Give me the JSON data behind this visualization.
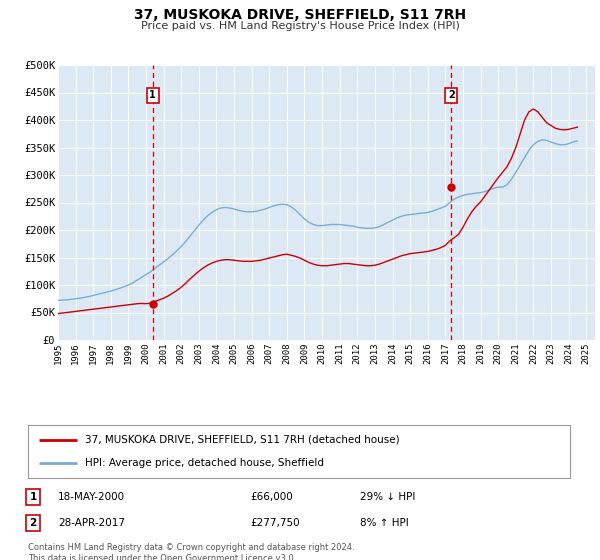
{
  "title": "37, MUSKOKA DRIVE, SHEFFIELD, S11 7RH",
  "subtitle": "Price paid vs. HM Land Registry's House Price Index (HPI)",
  "background_color": "#ffffff",
  "plot_bg_color": "#dce9f5",
  "grid_color": "#cccccc",
  "red_line_color": "#cc0000",
  "blue_line_color": "#7aadcf",
  "ylim": [
    0,
    500000
  ],
  "yticks": [
    0,
    50000,
    100000,
    150000,
    200000,
    250000,
    300000,
    350000,
    400000,
    450000,
    500000
  ],
  "ytick_labels": [
    "£0",
    "£50K",
    "£100K",
    "£150K",
    "£200K",
    "£250K",
    "£300K",
    "£350K",
    "£400K",
    "£450K",
    "£500K"
  ],
  "xlim_start": 1995.0,
  "xlim_end": 2025.5,
  "marker1_x": 2000.38,
  "marker1_y": 66000,
  "marker2_x": 2017.33,
  "marker2_y": 277750,
  "legend_line1": "37, MUSKOKA DRIVE, SHEFFIELD, S11 7RH (detached house)",
  "legend_line2": "HPI: Average price, detached house, Sheffield",
  "table_row1": [
    "1",
    "18-MAY-2000",
    "£66,000",
    "29% ↓ HPI"
  ],
  "table_row2": [
    "2",
    "28-APR-2017",
    "£277,750",
    "8% ↑ HPI"
  ],
  "footer1": "Contains HM Land Registry data © Crown copyright and database right 2024.",
  "footer2": "This data is licensed under the Open Government Licence v3.0.",
  "hpi_data_x": [
    1995.0,
    1995.25,
    1995.5,
    1995.75,
    1996.0,
    1996.25,
    1996.5,
    1996.75,
    1997.0,
    1997.25,
    1997.5,
    1997.75,
    1998.0,
    1998.25,
    1998.5,
    1998.75,
    1999.0,
    1999.25,
    1999.5,
    1999.75,
    2000.0,
    2000.25,
    2000.5,
    2000.75,
    2001.0,
    2001.25,
    2001.5,
    2001.75,
    2002.0,
    2002.25,
    2002.5,
    2002.75,
    2003.0,
    2003.25,
    2003.5,
    2003.75,
    2004.0,
    2004.25,
    2004.5,
    2004.75,
    2005.0,
    2005.25,
    2005.5,
    2005.75,
    2006.0,
    2006.25,
    2006.5,
    2006.75,
    2007.0,
    2007.25,
    2007.5,
    2007.75,
    2008.0,
    2008.25,
    2008.5,
    2008.75,
    2009.0,
    2009.25,
    2009.5,
    2009.75,
    2010.0,
    2010.25,
    2010.5,
    2010.75,
    2011.0,
    2011.25,
    2011.5,
    2011.75,
    2012.0,
    2012.25,
    2012.5,
    2012.75,
    2013.0,
    2013.25,
    2013.5,
    2013.75,
    2014.0,
    2014.25,
    2014.5,
    2014.75,
    2015.0,
    2015.25,
    2015.5,
    2015.75,
    2016.0,
    2016.25,
    2016.5,
    2016.75,
    2017.0,
    2017.25,
    2017.5,
    2017.75,
    2018.0,
    2018.25,
    2018.5,
    2018.75,
    2019.0,
    2019.25,
    2019.5,
    2019.75,
    2020.0,
    2020.25,
    2020.5,
    2020.75,
    2021.0,
    2021.25,
    2021.5,
    2021.75,
    2022.0,
    2022.25,
    2022.5,
    2022.75,
    2023.0,
    2023.25,
    2023.5,
    2023.75,
    2024.0,
    2024.25,
    2024.5
  ],
  "hpi_data_y": [
    72000,
    72500,
    73000,
    74000,
    75000,
    76000,
    77500,
    79000,
    81000,
    83000,
    85000,
    87000,
    89000,
    91500,
    94000,
    97000,
    100000,
    104000,
    109000,
    114000,
    119000,
    124000,
    130000,
    136000,
    142000,
    148000,
    155000,
    162000,
    170000,
    179000,
    189000,
    199000,
    209000,
    218000,
    226000,
    232000,
    237000,
    240000,
    241000,
    240000,
    238000,
    236000,
    234000,
    233000,
    233000,
    234000,
    236000,
    238000,
    241000,
    244000,
    246000,
    247000,
    246000,
    242000,
    236000,
    228000,
    220000,
    214000,
    210000,
    208000,
    208000,
    209000,
    210000,
    210000,
    210000,
    209000,
    208000,
    207000,
    205000,
    204000,
    203000,
    203000,
    204000,
    206000,
    210000,
    214000,
    218000,
    222000,
    225000,
    227000,
    228000,
    229000,
    230000,
    231000,
    232000,
    234000,
    237000,
    240000,
    243000,
    250000,
    256000,
    260000,
    263000,
    265000,
    266000,
    267000,
    268000,
    270000,
    273000,
    276000,
    278000,
    278000,
    282000,
    292000,
    305000,
    318000,
    332000,
    345000,
    355000,
    361000,
    364000,
    363000,
    360000,
    357000,
    355000,
    355000,
    357000,
    360000,
    362000
  ],
  "price_data_x": [
    1995.0,
    1995.25,
    1995.5,
    1995.75,
    1996.0,
    1996.25,
    1996.5,
    1996.75,
    1997.0,
    1997.25,
    1997.5,
    1997.75,
    1998.0,
    1998.25,
    1998.5,
    1998.75,
    1999.0,
    1999.25,
    1999.5,
    1999.75,
    2000.0,
    2000.25,
    2000.5,
    2000.75,
    2001.0,
    2001.25,
    2001.5,
    2001.75,
    2002.0,
    2002.25,
    2002.5,
    2002.75,
    2003.0,
    2003.25,
    2003.5,
    2003.75,
    2004.0,
    2004.25,
    2004.5,
    2004.75,
    2005.0,
    2005.25,
    2005.5,
    2005.75,
    2006.0,
    2006.25,
    2006.5,
    2006.75,
    2007.0,
    2007.25,
    2007.5,
    2007.75,
    2008.0,
    2008.25,
    2008.5,
    2008.75,
    2009.0,
    2009.25,
    2009.5,
    2009.75,
    2010.0,
    2010.25,
    2010.5,
    2010.75,
    2011.0,
    2011.25,
    2011.5,
    2011.75,
    2012.0,
    2012.25,
    2012.5,
    2012.75,
    2013.0,
    2013.25,
    2013.5,
    2013.75,
    2014.0,
    2014.25,
    2014.5,
    2014.75,
    2015.0,
    2015.25,
    2015.5,
    2015.75,
    2016.0,
    2016.25,
    2016.5,
    2016.75,
    2017.0,
    2017.25,
    2017.5,
    2017.75,
    2018.0,
    2018.25,
    2018.5,
    2018.75,
    2019.0,
    2019.25,
    2019.5,
    2019.75,
    2020.0,
    2020.25,
    2020.5,
    2020.75,
    2021.0,
    2021.25,
    2021.5,
    2021.75,
    2022.0,
    2022.25,
    2022.5,
    2022.75,
    2023.0,
    2023.25,
    2023.5,
    2023.75,
    2024.0,
    2024.25,
    2024.5
  ],
  "price_data_y": [
    48000,
    49000,
    50000,
    51000,
    52000,
    53000,
    54000,
    55000,
    56000,
    57000,
    58000,
    59000,
    60000,
    61000,
    62000,
    63000,
    64000,
    65000,
    66000,
    66500,
    66000,
    67000,
    70000,
    73000,
    76000,
    80000,
    85000,
    90000,
    96000,
    103000,
    111000,
    118000,
    125000,
    131000,
    136000,
    140000,
    143000,
    145000,
    146000,
    146000,
    145000,
    144000,
    143000,
    143000,
    143000,
    144000,
    145000,
    147000,
    149000,
    151000,
    153000,
    155000,
    156000,
    154000,
    152000,
    149000,
    145000,
    141000,
    138000,
    136000,
    135000,
    135000,
    136000,
    137000,
    138000,
    139000,
    139000,
    138000,
    137000,
    136000,
    135000,
    135000,
    136000,
    138000,
    141000,
    144000,
    147000,
    150000,
    153000,
    155000,
    157000,
    158000,
    159000,
    160000,
    161000,
    163000,
    165000,
    168000,
    172000,
    180000,
    186000,
    192000,
    205000,
    220000,
    233000,
    243000,
    251000,
    262000,
    273000,
    284000,
    295000,
    305000,
    315000,
    330000,
    350000,
    375000,
    400000,
    415000,
    420000,
    415000,
    405000,
    395000,
    390000,
    385000,
    383000,
    382000,
    383000,
    385000,
    387000
  ]
}
